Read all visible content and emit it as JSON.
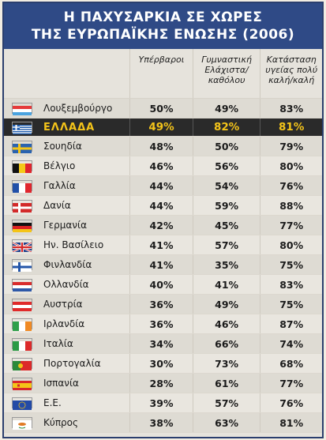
{
  "title": {
    "line1": "Η ΠΑΧΥΣΑΡΚΙΑ ΣΕ ΧΩΡΕΣ",
    "line2": "ΤΗΣ ΕΥΡΩΠΑΪΚΗΣ ΕΝΩΣΗΣ (2006)"
  },
  "headers": {
    "overweight": "Υπέρβαροι",
    "exercise_line1": "Γυμναστική",
    "exercise_line2": "Ελάχιστα/",
    "exercise_line3": "καθόλου",
    "health_line1": "Κατάσταση",
    "health_line2": "υγείας πολύ",
    "health_line3": "καλή/καλή"
  },
  "rows": [
    {
      "name": "Λουξεμβούργο",
      "overweight": "50%",
      "exercise": "49%",
      "health": "83%",
      "flag": "luxembourg-flag-icon",
      "colors": [
        "#e53a3a",
        "#ffffff",
        "#4aa3df"
      ],
      "layout": "h"
    },
    {
      "name": "ΕΛΛΑΔΑ",
      "overweight": "49%",
      "exercise": "82%",
      "health": "81%",
      "flag": "greece-flag-icon",
      "colors": [
        "#1c5cb0",
        "#ffffff"
      ],
      "layout": "gr",
      "highlight": true
    },
    {
      "name": "Σουηδία",
      "overweight": "48%",
      "exercise": "50%",
      "health": "79%",
      "flag": "sweden-flag-icon",
      "colors": [
        "#2a63b0",
        "#f6c618"
      ],
      "layout": "nordic"
    },
    {
      "name": "Βέλγιο",
      "overweight": "46%",
      "exercise": "56%",
      "health": "80%",
      "flag": "belgium-flag-icon",
      "colors": [
        "#111111",
        "#f4c918",
        "#e0262e"
      ],
      "layout": "v"
    },
    {
      "name": "Γαλλία",
      "overweight": "44%",
      "exercise": "54%",
      "health": "76%",
      "flag": "france-flag-icon",
      "colors": [
        "#214fa8",
        "#ffffff",
        "#e0262e"
      ],
      "layout": "v"
    },
    {
      "name": "Δανία",
      "overweight": "44%",
      "exercise": "59%",
      "health": "88%",
      "flag": "denmark-flag-icon",
      "colors": [
        "#d32a2a",
        "#ffffff"
      ],
      "layout": "nordic"
    },
    {
      "name": "Γερμανία",
      "overweight": "42%",
      "exercise": "45%",
      "health": "77%",
      "flag": "germany-flag-icon",
      "colors": [
        "#111111",
        "#dd2222",
        "#f4c418"
      ],
      "layout": "h"
    },
    {
      "name": "Ην. Βασίλειο",
      "overweight": "41%",
      "exercise": "57%",
      "health": "80%",
      "flag": "uk-flag-icon",
      "colors": [
        "#1e3f8a",
        "#ffffff",
        "#d42a2a"
      ],
      "layout": "uk"
    },
    {
      "name": "Φινλανδία",
      "overweight": "41%",
      "exercise": "35%",
      "health": "75%",
      "flag": "finland-flag-icon",
      "colors": [
        "#ffffff",
        "#2556a8"
      ],
      "layout": "nordic"
    },
    {
      "name": "Ολλανδία",
      "overweight": "40%",
      "exercise": "41%",
      "health": "83%",
      "flag": "netherlands-flag-icon",
      "colors": [
        "#d92c2c",
        "#ffffff",
        "#2e58a8"
      ],
      "layout": "h"
    },
    {
      "name": "Αυστρία",
      "overweight": "36%",
      "exercise": "49%",
      "health": "75%",
      "flag": "austria-flag-icon",
      "colors": [
        "#e02a2a",
        "#ffffff",
        "#e02a2a"
      ],
      "layout": "h"
    },
    {
      "name": "Ιρλανδία",
      "overweight": "36%",
      "exercise": "46%",
      "health": "87%",
      "flag": "ireland-flag-icon",
      "colors": [
        "#2ea04a",
        "#ffffff",
        "#f08a24"
      ],
      "layout": "v"
    },
    {
      "name": "Ιταλία",
      "overweight": "34%",
      "exercise": "66%",
      "health": "74%",
      "flag": "italy-flag-icon",
      "colors": [
        "#2a9a44",
        "#ffffff",
        "#dc2a2a"
      ],
      "layout": "v"
    },
    {
      "name": "Πορτογαλία",
      "overweight": "30%",
      "exercise": "73%",
      "health": "68%",
      "flag": "portugal-flag-icon",
      "colors": [
        "#2a8a3a",
        "#dc2a2a",
        "#f2c218"
      ],
      "layout": "pt"
    },
    {
      "name": "Ισπανία",
      "overweight": "28%",
      "exercise": "61%",
      "health": "77%",
      "flag": "spain-flag-icon",
      "colors": [
        "#d8282a",
        "#f4c418",
        "#d8282a"
      ],
      "layout": "es"
    },
    {
      "name": "Ε.Ε.",
      "overweight": "39%",
      "exercise": "57%",
      "health": "76%",
      "flag": "eu-flag-icon",
      "colors": [
        "#234aa6",
        "#f4c418"
      ],
      "layout": "eu"
    },
    {
      "name": "Κύπρος",
      "overweight": "38%",
      "exercise": "63%",
      "health": "81%",
      "flag": "cyprus-flag-icon",
      "colors": [
        "#ffffff",
        "#e07a24",
        "#2e8a3a"
      ],
      "layout": "cy"
    }
  ]
}
